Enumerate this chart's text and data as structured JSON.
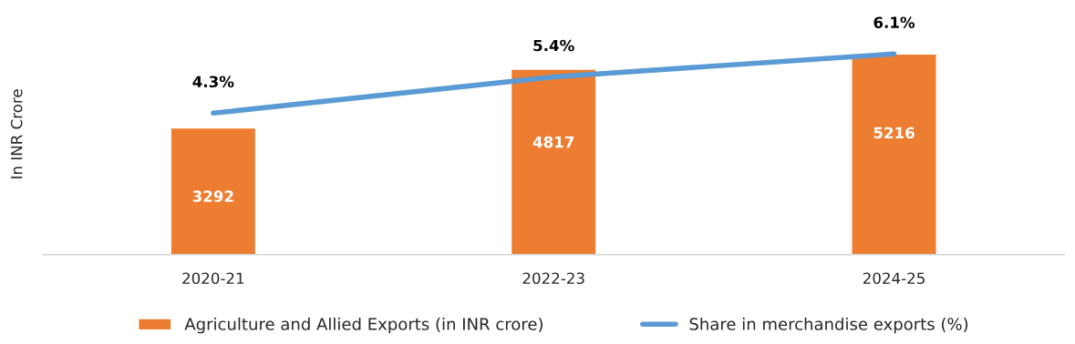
{
  "chart_data": {
    "type": "bar",
    "ylabel": "In INR Crore",
    "categories": [
      "2020-21",
      "2022-23",
      "2024-25"
    ],
    "legend": "bottom",
    "grid": false,
    "series": [
      {
        "name": "Agriculture and Allied Exports (in INR crore)",
        "color": "#ed7d31",
        "values": [
          3292,
          4817,
          5216
        ],
        "value_labels": [
          "3292",
          "4817",
          "5216"
        ]
      },
      {
        "name": "Share in merchandise exports (%)",
        "type": "line",
        "axis": "y2",
        "color": "#5b9bd5",
        "values": [
          4.3,
          5.4,
          6.1
        ],
        "value_labels": [
          "4.3%",
          "5.4%",
          "6.1%"
        ]
      }
    ]
  }
}
